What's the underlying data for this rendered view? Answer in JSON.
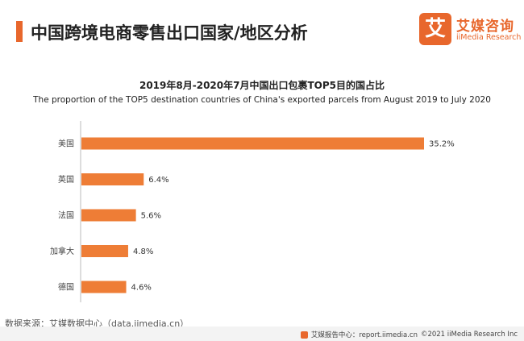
{
  "header": {
    "title": "中国跨境电商零售出口国家/地区分析"
  },
  "logo": {
    "mark_char": "艾",
    "name_cn": "艾媒咨询",
    "name_en": "iiMedia Research"
  },
  "colors": {
    "accent": "#e8672c",
    "bar": "#ee7d36"
  },
  "chart_data": {
    "type": "bar",
    "orientation": "horizontal",
    "title": "2019年8月-2020年7月中国出口包裹TOP5目的国占比",
    "subtitle": "The proportion of the TOP5 destination countries of China's exported parcels from August 2019 to July 2020",
    "categories": [
      "美国",
      "英国",
      "法国",
      "加拿大",
      "德国"
    ],
    "values": [
      35.2,
      6.4,
      5.6,
      4.8,
      4.6
    ],
    "value_labels": [
      "35.2%",
      "6.4%",
      "5.6%",
      "4.8%",
      "4.6%"
    ],
    "xlim": [
      0,
      35.2
    ],
    "grid": false,
    "legend": "none"
  },
  "footer": {
    "source": "数据来源：艾媒数据中心（data.iimedia.cn）",
    "report_site": "艾媒报告中心：report.iimedia.cn",
    "copyright": "©2021  iiMedia Research  Inc"
  }
}
